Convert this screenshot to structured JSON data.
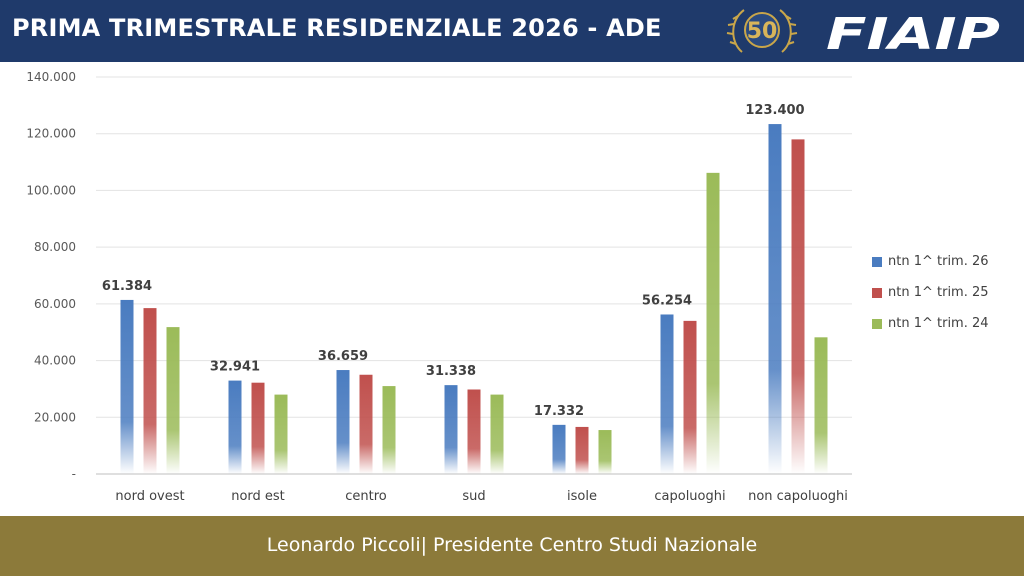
{
  "header": {
    "title": "PRIMA TRIMESTRALE RESIDENZIALE 2026 - ADE",
    "badge_text": "50",
    "brand_text": "FIAIP"
  },
  "footer": {
    "text": "Leonardo Piccoli| Presidente Centro Studi Nazionale"
  },
  "colors": {
    "header_bg": "#1f3a6b",
    "footer_bg": "#8c7a3a",
    "series": [
      "#4a7cc0",
      "#c0504d",
      "#9bbb59"
    ]
  },
  "chart_data": {
    "type": "bar",
    "categories": [
      "nord ovest",
      "nord est",
      "centro",
      "sud",
      "isole",
      "capoluoghi",
      "non capoluoghi"
    ],
    "series": [
      {
        "name": "ntn 1^ trim. 26",
        "values": [
          61384,
          32941,
          36659,
          31338,
          17332,
          56254,
          123400
        ]
      },
      {
        "name": "ntn 1^ trim. 25",
        "values": [
          58500,
          32200,
          35000,
          29800,
          16600,
          54000,
          118000
        ]
      },
      {
        "name": "ntn 1^ trim. 24",
        "values": [
          51800,
          28000,
          31000,
          28000,
          15500,
          106200,
          48200
        ]
      }
    ],
    "data_labels": [
      "61.384",
      "32.941",
      "36.659",
      "31.338",
      "17.332",
      "56.254",
      "123.400"
    ],
    "y_ticks": [
      0,
      20000,
      40000,
      60000,
      80000,
      100000,
      120000,
      140000
    ],
    "y_tick_labels": [
      "-",
      "20.000",
      "40.000",
      "60.000",
      "80.000",
      "100.000",
      "120.000",
      "140.000"
    ],
    "ylim": [
      0,
      140000
    ],
    "grid": true,
    "legend_position": "right"
  }
}
